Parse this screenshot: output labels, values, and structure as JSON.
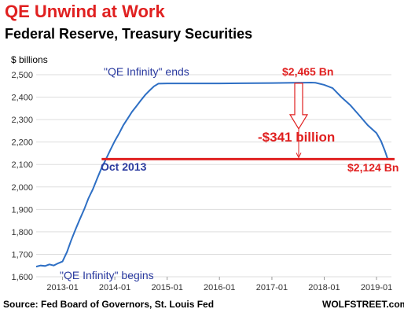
{
  "header": {
    "title": "QE Unwind at Work",
    "subtitle": "Federal Reserve, Treasury Securities"
  },
  "footer": {
    "source": "Source: Fed Board of Governors, St. Louis Fed",
    "brand": "WOLFSTREET.com"
  },
  "colors": {
    "line": "#2e6fc4",
    "title": "#e02020",
    "annotation_blue": "#2a3a9f",
    "annotation_red": "#e02020",
    "grid": "#dddddd"
  },
  "chart_data": {
    "type": "line",
    "title": "QE Unwind at Work",
    "subtitle": "Federal Reserve, Treasury Securities",
    "ylabel": "$ billions",
    "xlabel": "",
    "ylim": [
      1600,
      2500
    ],
    "xlim": [
      "2012-07-01",
      "2019-04-15"
    ],
    "yticks": [
      "1,600",
      "1,700",
      "1,800",
      "1,900",
      "2,000",
      "2,100",
      "2,200",
      "2,300",
      "2,400",
      "2,500"
    ],
    "ytick_values": [
      1600,
      1700,
      1800,
      1900,
      2000,
      2100,
      2200,
      2300,
      2400,
      2500
    ],
    "xticks": [
      "2013-01",
      "2014-01",
      "2015-01",
      "2016-01",
      "2017-01",
      "2018-01",
      "2019-01"
    ],
    "xtick_dates": [
      "2013-01-01",
      "2014-01-01",
      "2015-01-01",
      "2016-01-01",
      "2017-01-01",
      "2018-01-01",
      "2019-01-01"
    ],
    "grid": "horizontal",
    "series": [
      {
        "x": [
          "2012-07-01",
          "2012-08-01",
          "2012-09-01",
          "2012-10-01",
          "2012-11-01",
          "2012-12-01",
          "2013-01-01",
          "2013-02-01",
          "2013-03-01",
          "2013-04-01",
          "2013-05-01",
          "2013-06-01",
          "2013-07-01",
          "2013-08-01",
          "2013-09-01",
          "2013-10-01",
          "2013-11-01",
          "2013-12-01",
          "2014-01-01",
          "2014-02-01",
          "2014-03-01",
          "2014-04-01",
          "2014-05-01",
          "2014-06-01",
          "2014-07-01",
          "2014-08-01",
          "2014-09-01",
          "2014-10-01",
          "2014-11-01",
          "2015-01-01",
          "2015-06-01",
          "2016-01-01",
          "2016-06-01",
          "2017-01-01",
          "2017-06-01",
          "2017-10-01",
          "2017-11-01",
          "2018-01-01",
          "2018-03-01",
          "2018-05-01",
          "2018-07-01",
          "2018-09-01",
          "2018-11-01",
          "2019-01-01",
          "2019-02-01",
          "2019-03-01",
          "2019-03-20"
        ],
        "values": [
          1645,
          1650,
          1648,
          1655,
          1650,
          1660,
          1668,
          1710,
          1760,
          1810,
          1855,
          1900,
          1950,
          1990,
          2040,
          2085,
          2125,
          2165,
          2205,
          2240,
          2275,
          2305,
          2335,
          2360,
          2385,
          2410,
          2430,
          2448,
          2460,
          2461,
          2461,
          2461,
          2462,
          2463,
          2464,
          2465,
          2464,
          2455,
          2440,
          2400,
          2365,
          2320,
          2275,
          2240,
          2205,
          2160,
          2124
        ]
      }
    ],
    "annotations": [
      {
        "text": "\"QE Infinity\" ends"
      },
      {
        "text": "\"QE Infinity\" begins"
      },
      {
        "text": "Oct 2013"
      },
      {
        "text": "$2,465 Bn"
      },
      {
        "text": "-$341 billion"
      },
      {
        "text": "$2,124 Bn"
      }
    ],
    "reference_line": {
      "value": 2124,
      "from": "2013-10-01",
      "to": "2019-03-20"
    }
  }
}
